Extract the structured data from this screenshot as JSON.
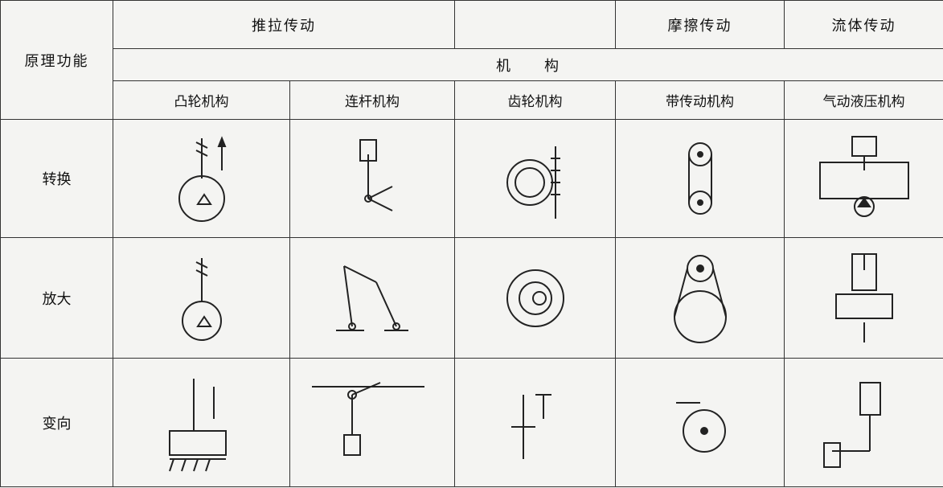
{
  "table": {
    "row_label_header": "原理功能",
    "groups": [
      "推拉传动",
      "摩擦传动",
      "流体传动"
    ],
    "span_label": "机　　构",
    "columns": [
      "凸轮机构",
      "连杆机构",
      "齿轮机构",
      "带传动机构",
      "气动液压机构"
    ],
    "rows": [
      {
        "label": "转换"
      },
      {
        "label": "放大"
      },
      {
        "label": "变向"
      }
    ]
  }
}
